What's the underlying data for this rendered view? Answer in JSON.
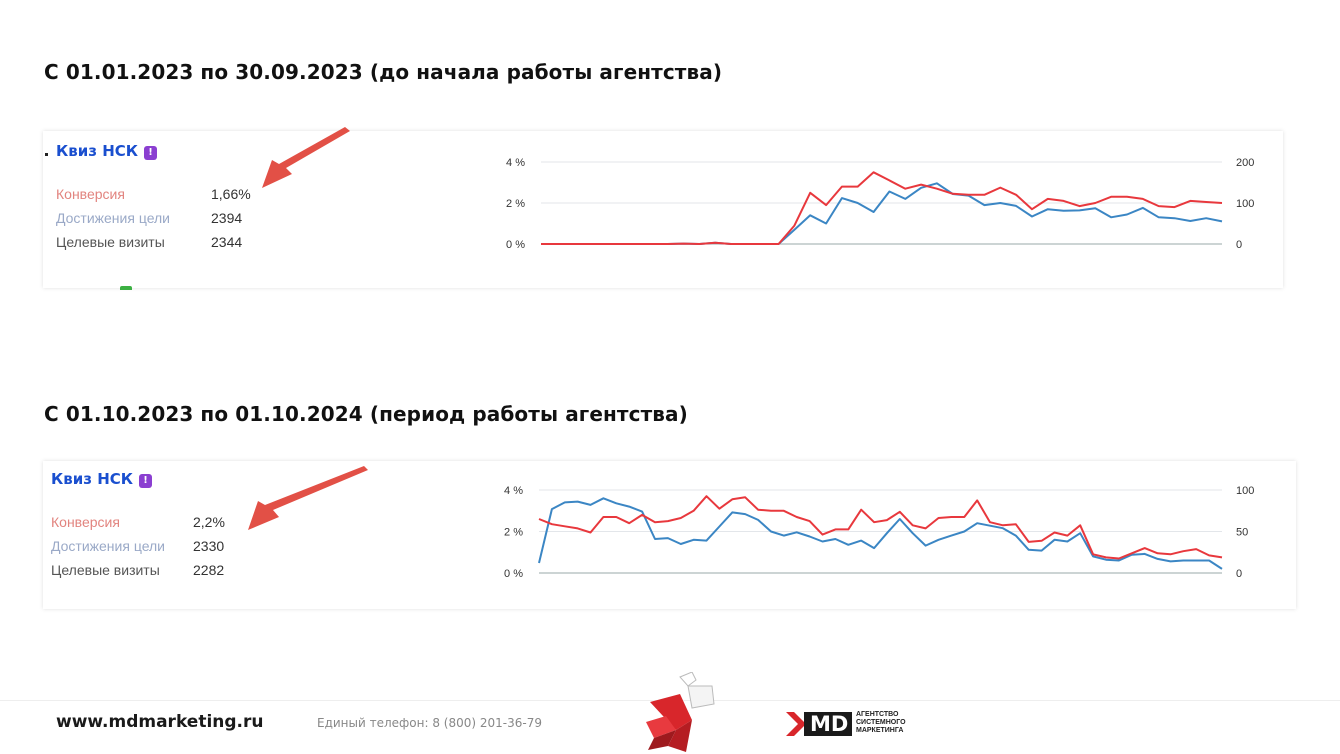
{
  "sections": [
    {
      "heading": "С 01.01.2023 по 30.09.2023 (до начала работы агентства)",
      "goal_name": "Квиз НСК",
      "badge": "!",
      "metrics": [
        {
          "label": "Конверсия",
          "value": "1,66%"
        },
        {
          "label": "Достижения цели",
          "value": "2394"
        },
        {
          "label": "Целевые визиты",
          "value": "2344"
        }
      ]
    },
    {
      "heading": "С 01.10.2023 по 01.10.2024 (период работы агентства)",
      "goal_name": "Квиз НСК",
      "badge": "!",
      "metrics": [
        {
          "label": "Конверсия",
          "value": "2,2%"
        },
        {
          "label": "Достижения цели",
          "value": "2330"
        },
        {
          "label": "Целевые визиты",
          "value": "2282"
        }
      ]
    }
  ],
  "footer": {
    "website": "www.mdmarketing.ru",
    "phone": "Единый телефон: 8 (800) 201-36-79",
    "logo_text": "MD",
    "agency_line1": "АГЕНТСТВО",
    "agency_line2": "СИСТЕМНОГО",
    "agency_line3": "МАРКЕТИНГА"
  },
  "colors": {
    "conversion_line": "#e8383d",
    "visits_line": "#3b86c4",
    "arrow": "#e25046",
    "title_blue": "#1a4fcf"
  },
  "chart_data": [
    {
      "type": "line",
      "y_left_ticks": [
        "4 %",
        "2 %",
        "0 %"
      ],
      "y_right_ticks": [
        "200",
        "100",
        "0"
      ],
      "ylim_left": [
        0,
        4
      ],
      "ylim_right": [
        0,
        200
      ],
      "grid": true,
      "series": [
        {
          "axis": "left",
          "color": "#e8383d",
          "values": [
            0,
            0,
            0,
            0,
            0,
            0,
            0,
            0,
            0,
            0.02,
            0,
            0.06,
            0,
            0,
            0,
            0,
            0.9,
            2.5,
            1.9,
            2.8,
            2.8,
            3.5,
            3.1,
            2.7,
            2.9,
            2.7,
            2.45,
            2.4,
            2.4,
            2.75,
            2.4,
            1.7,
            2.2,
            2.1,
            1.85,
            2.0,
            2.3,
            2.3,
            2.2,
            1.85,
            1.8,
            2.1,
            2.05,
            2.0
          ]
        },
        {
          "axis": "right",
          "color": "#3b86c4",
          "values": [
            0,
            0,
            0,
            0,
            0,
            0,
            0,
            0,
            0,
            1,
            0,
            3,
            0,
            0,
            0,
            0,
            35,
            70,
            50,
            112,
            100,
            78,
            128,
            110,
            137,
            148,
            122,
            118,
            95,
            100,
            93,
            67,
            85,
            81,
            82,
            87,
            65,
            72,
            88,
            65,
            63,
            56,
            63,
            55
          ]
        }
      ]
    },
    {
      "type": "line",
      "y_left_ticks": [
        "4 %",
        "2 %",
        "0 %"
      ],
      "y_right_ticks": [
        "100",
        "50",
        "0"
      ],
      "ylim_left": [
        0,
        4
      ],
      "ylim_right": [
        0,
        100
      ],
      "grid": true,
      "series": [
        {
          "axis": "left",
          "color": "#e8383d",
          "values": [
            2.6,
            2.35,
            2.25,
            2.15,
            1.95,
            2.7,
            2.7,
            2.4,
            2.8,
            2.45,
            2.5,
            2.65,
            3.0,
            3.7,
            3.1,
            3.55,
            3.65,
            3.05,
            3.0,
            3.0,
            2.7,
            2.5,
            1.85,
            2.1,
            2.1,
            3.05,
            2.45,
            2.55,
            2.95,
            2.3,
            2.15,
            2.65,
            2.7,
            2.7,
            3.5,
            2.45,
            2.3,
            2.35,
            1.5,
            1.55,
            1.95,
            1.8,
            2.3,
            0.9,
            0.75,
            0.7,
            0.95,
            1.2,
            0.95,
            0.9,
            1.05,
            1.15,
            0.85,
            0.75
          ]
        },
        {
          "axis": "right",
          "color": "#3b86c4",
          "values": [
            12,
            77,
            85,
            86,
            82,
            90,
            84,
            80,
            74,
            41,
            42,
            35,
            40,
            39,
            56,
            73,
            71,
            64,
            50,
            45,
            49,
            44,
            38,
            41,
            34,
            39,
            30,
            48,
            65,
            48,
            33,
            40,
            45,
            50,
            60,
            57,
            54,
            45,
            28,
            27,
            40,
            38,
            48,
            20,
            16,
            15,
            22,
            23,
            17,
            14,
            15,
            15,
            15,
            5
          ]
        }
      ]
    }
  ]
}
